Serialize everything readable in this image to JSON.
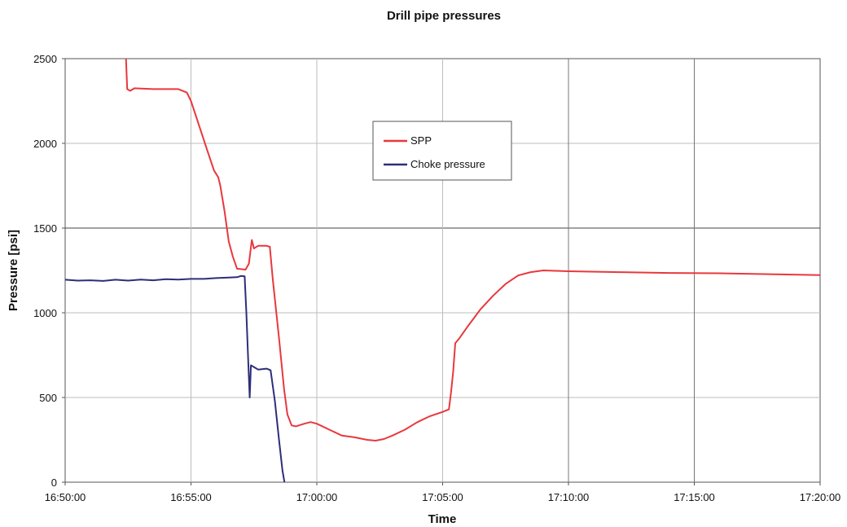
{
  "chart_data": {
    "type": "line",
    "title": "Drill pipe pressures",
    "xlabel": "Time",
    "ylabel": "Pressure [psi]",
    "xlim": [
      "16:50:00",
      "17:20:00"
    ],
    "ylim": [
      0,
      2500
    ],
    "x_ticks": [
      "16:50:00",
      "16:55:00",
      "17:00:00",
      "17:05:00",
      "17:10:00",
      "17:15:00",
      "17:20:00"
    ],
    "y_ticks": [
      0,
      500,
      1000,
      1500,
      2000,
      2500
    ],
    "grid": true,
    "legend_position": "upper-center",
    "series": [
      {
        "name": "SPP",
        "color": "#e8383d",
        "points": [
          [
            "16:52:25",
            2500
          ],
          [
            "16:52:28",
            2320
          ],
          [
            "16:52:35",
            2310
          ],
          [
            "16:52:45",
            2325
          ],
          [
            "16:53:30",
            2320
          ],
          [
            "16:54:30",
            2320
          ],
          [
            "16:54:50",
            2300
          ],
          [
            "16:55:00",
            2250
          ],
          [
            "16:55:20",
            2100
          ],
          [
            "16:55:40",
            1950
          ],
          [
            "16:55:55",
            1840
          ],
          [
            "16:56:05",
            1800
          ],
          [
            "16:56:10",
            1750
          ],
          [
            "16:56:20",
            1600
          ],
          [
            "16:56:30",
            1420
          ],
          [
            "16:56:40",
            1330
          ],
          [
            "16:56:50",
            1260
          ],
          [
            "16:57:10",
            1255
          ],
          [
            "16:57:18",
            1290
          ],
          [
            "16:57:25",
            1430
          ],
          [
            "16:57:30",
            1380
          ],
          [
            "16:57:40",
            1395
          ],
          [
            "16:58:00",
            1395
          ],
          [
            "16:58:08",
            1390
          ],
          [
            "16:58:15",
            1200
          ],
          [
            "16:58:30",
            850
          ],
          [
            "16:58:42",
            550
          ],
          [
            "16:58:50",
            400
          ],
          [
            "16:59:00",
            335
          ],
          [
            "16:59:10",
            330
          ],
          [
            "16:59:30",
            345
          ],
          [
            "16:59:45",
            355
          ],
          [
            "17:00:00",
            345
          ],
          [
            "17:00:30",
            310
          ],
          [
            "17:01:00",
            275
          ],
          [
            "17:01:30",
            265
          ],
          [
            "17:02:00",
            250
          ],
          [
            "17:02:20",
            245
          ],
          [
            "17:02:40",
            255
          ],
          [
            "17:03:00",
            275
          ],
          [
            "17:03:30",
            310
          ],
          [
            "17:04:00",
            355
          ],
          [
            "17:04:30",
            390
          ],
          [
            "17:05:00",
            415
          ],
          [
            "17:05:15",
            430
          ],
          [
            "17:05:20",
            530
          ],
          [
            "17:05:25",
            650
          ],
          [
            "17:05:30",
            820
          ],
          [
            "17:05:40",
            850
          ],
          [
            "17:06:00",
            920
          ],
          [
            "17:06:30",
            1020
          ],
          [
            "17:07:00",
            1100
          ],
          [
            "17:07:30",
            1170
          ],
          [
            "17:08:00",
            1220
          ],
          [
            "17:08:30",
            1240
          ],
          [
            "17:09:00",
            1250
          ],
          [
            "17:10:00",
            1245
          ],
          [
            "17:12:00",
            1240
          ],
          [
            "17:14:00",
            1235
          ],
          [
            "17:16:00",
            1233
          ],
          [
            "17:18:00",
            1228
          ],
          [
            "17:20:00",
            1222
          ]
        ]
      },
      {
        "name": "Choke pressure",
        "color": "#2e2e7a",
        "points": [
          [
            "16:50:00",
            1195
          ],
          [
            "16:50:30",
            1190
          ],
          [
            "16:51:00",
            1192
          ],
          [
            "16:51:30",
            1188
          ],
          [
            "16:52:00",
            1195
          ],
          [
            "16:52:30",
            1190
          ],
          [
            "16:53:00",
            1196
          ],
          [
            "16:53:30",
            1192
          ],
          [
            "16:54:00",
            1198
          ],
          [
            "16:54:30",
            1196
          ],
          [
            "16:55:00",
            1200
          ],
          [
            "16:55:30",
            1200
          ],
          [
            "16:56:00",
            1205
          ],
          [
            "16:56:30",
            1208
          ],
          [
            "16:56:50",
            1210
          ],
          [
            "16:57:00",
            1218
          ],
          [
            "16:57:08",
            1215
          ],
          [
            "16:57:12",
            1000
          ],
          [
            "16:57:16",
            750
          ],
          [
            "16:57:20",
            500
          ],
          [
            "16:57:23",
            690
          ],
          [
            "16:57:30",
            680
          ],
          [
            "16:57:40",
            665
          ],
          [
            "16:58:00",
            670
          ],
          [
            "16:58:06",
            665
          ],
          [
            "16:58:10",
            660
          ],
          [
            "16:58:20",
            480
          ],
          [
            "16:58:30",
            250
          ],
          [
            "16:58:38",
            70
          ],
          [
            "16:58:43",
            0
          ]
        ]
      }
    ]
  }
}
